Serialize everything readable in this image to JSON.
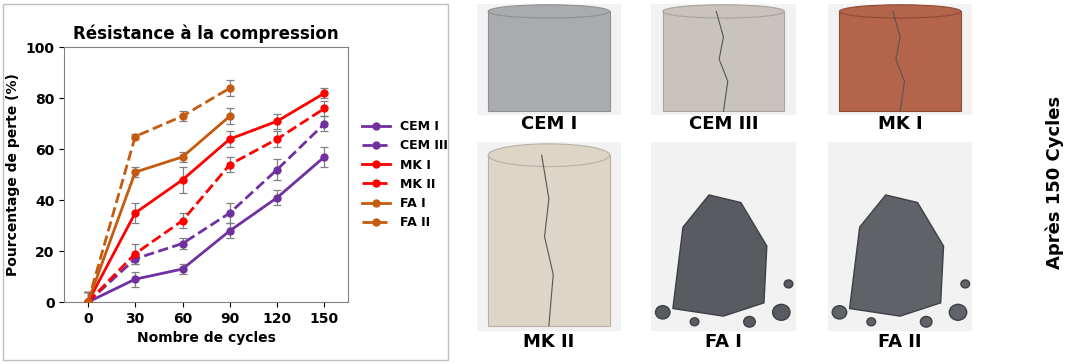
{
  "chart_data": {
    "type": "line",
    "title": "Résistance à la compression",
    "x_label": "Nombre de cycles",
    "y_label": "Pourcentage de perte (%)",
    "x": [
      0,
      30,
      60,
      90,
      120,
      150
    ],
    "xlim": [
      -15,
      165
    ],
    "xticks": [
      0,
      30,
      60,
      90,
      120,
      150
    ],
    "ylim": [
      0,
      100
    ],
    "yticks": [
      0,
      20,
      40,
      60,
      80,
      100
    ],
    "grid": false,
    "legend": "right",
    "series": [
      {
        "name": "CEM I",
        "color": "#7030a0",
        "line_style": "solid",
        "marker": "circle",
        "values": [
          0,
          9,
          13,
          28,
          41,
          57
        ],
        "errors": [
          4,
          3,
          2,
          3,
          3,
          4
        ]
      },
      {
        "name": "CEM III",
        "color": "#7030a0",
        "line_style": "dashed",
        "marker": "circle",
        "values": [
          0,
          17,
          23,
          35,
          52,
          70
        ],
        "errors": [
          4,
          2,
          2,
          4,
          4,
          3
        ]
      },
      {
        "name": "MK I",
        "color": "#ff0000",
        "line_style": "solid",
        "marker": "circle",
        "values": [
          0,
          35,
          48,
          64,
          71,
          82
        ],
        "errors": [
          4,
          4,
          5,
          3,
          3,
          2
        ]
      },
      {
        "name": "MK II",
        "color": "#ff0000",
        "line_style": "dashed",
        "marker": "circle",
        "values": [
          0,
          19,
          32,
          54,
          64,
          76
        ],
        "errors": [
          4,
          4,
          3,
          3,
          3,
          3
        ]
      },
      {
        "name": "FA I",
        "color": "#c55a11",
        "line_style": "solid",
        "marker": "circle",
        "values": [
          0,
          51,
          57,
          73,
          null,
          null
        ],
        "errors": [
          4,
          2,
          2,
          3,
          null,
          null
        ]
      },
      {
        "name": "FA II",
        "color": "#c55a11",
        "line_style": "dashed",
        "marker": "circle",
        "values": [
          0,
          65,
          73,
          84,
          null,
          null
        ],
        "errors": [
          4,
          1,
          2,
          3,
          null,
          null
        ]
      }
    ]
  },
  "photo_panel": {
    "caption": "Après 150 Cycles",
    "samples": [
      "CEM I",
      "CEM III",
      "MK I",
      "MK II",
      "FA I",
      "FA II"
    ]
  }
}
